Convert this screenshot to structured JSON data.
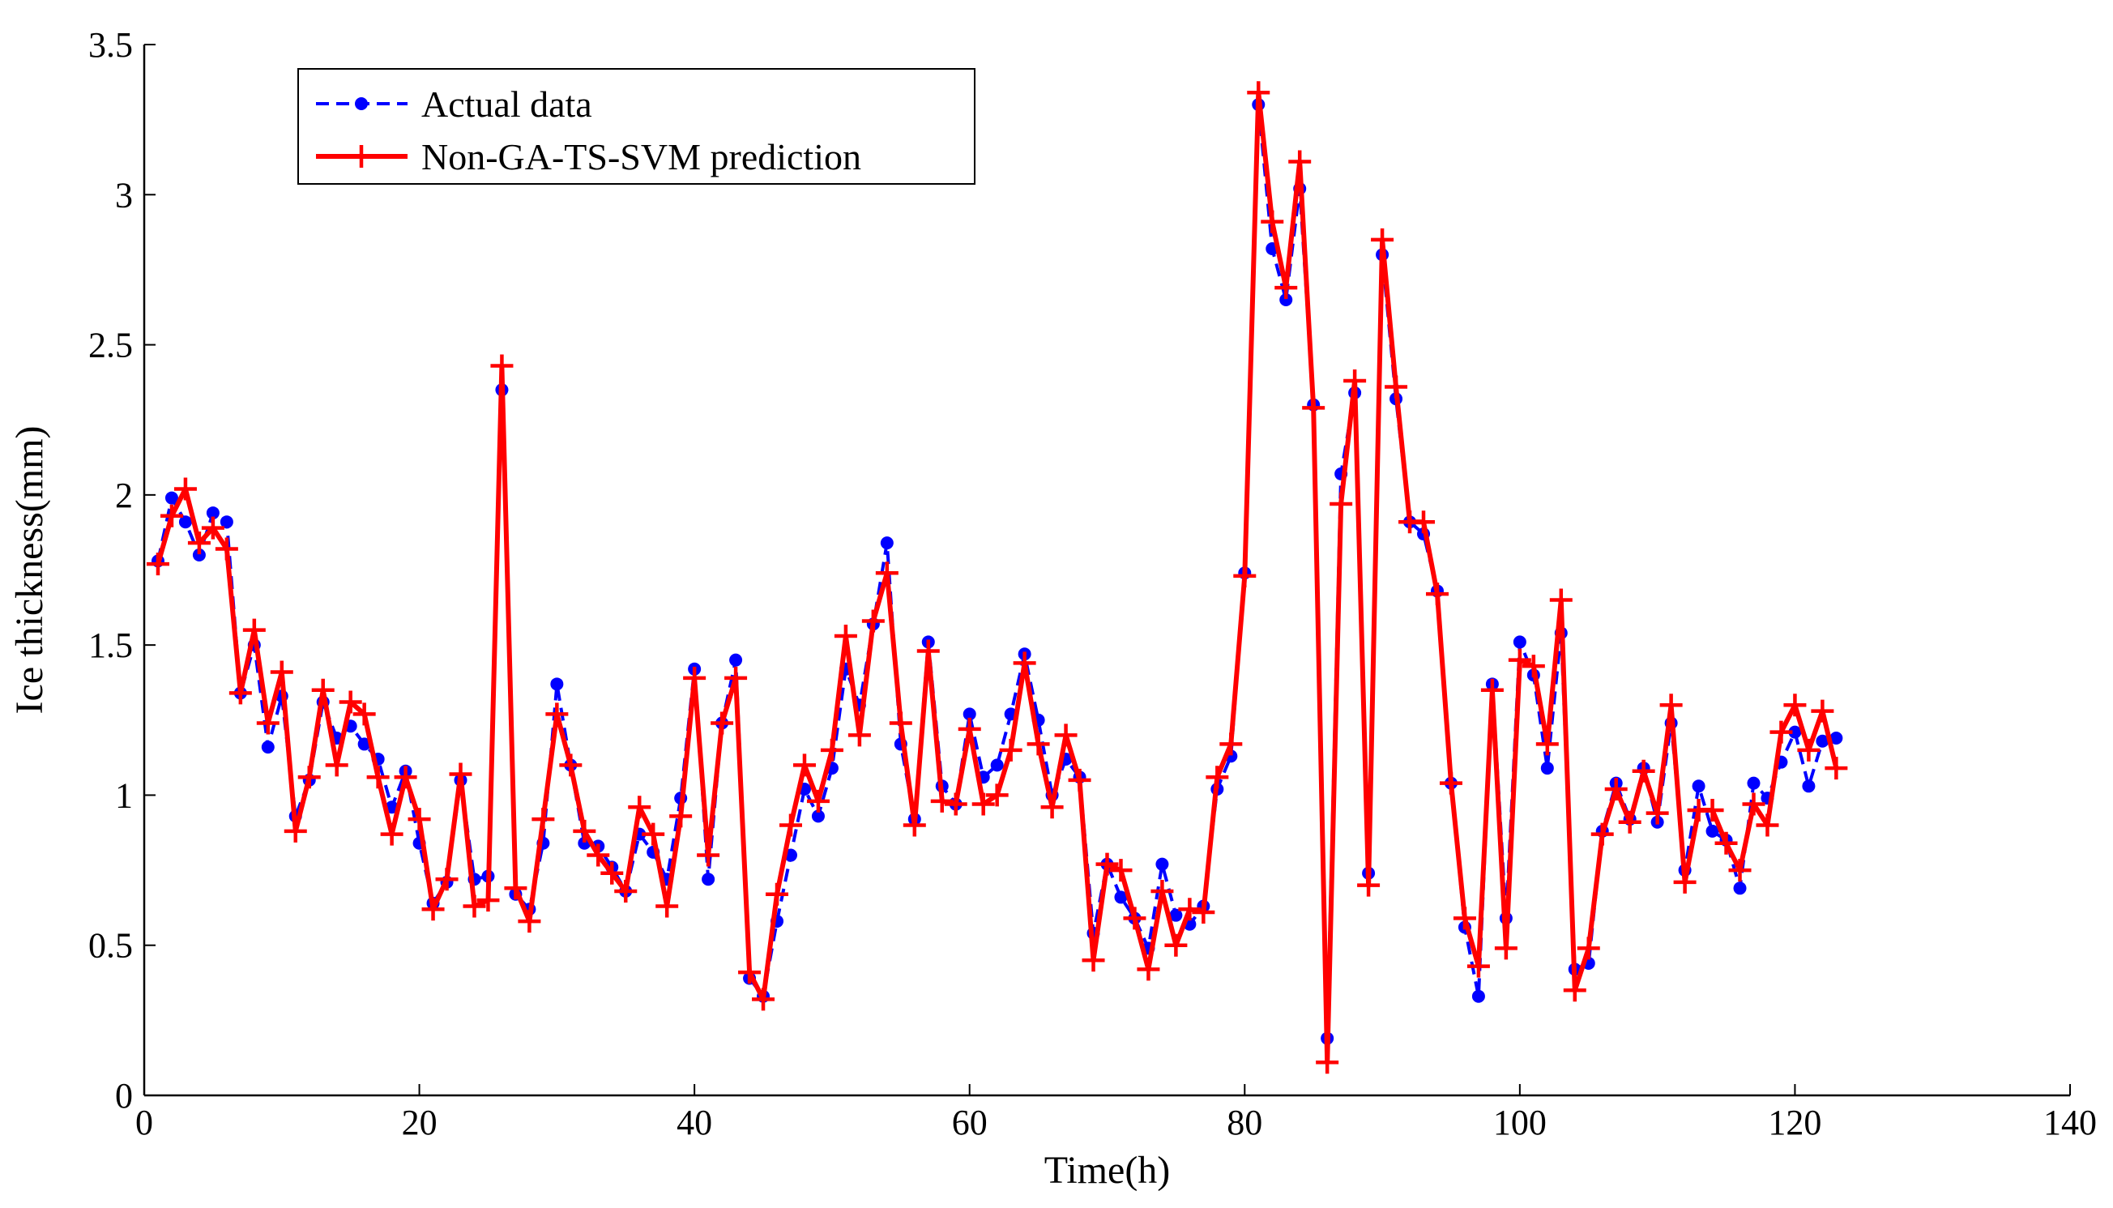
{
  "chart_data": {
    "type": "line",
    "title": "",
    "xlabel": "Time(h)",
    "ylabel": "Ice thickness(mm)",
    "xlim": [
      0,
      140
    ],
    "ylim": [
      0,
      3.5
    ],
    "xticks": [
      0,
      20,
      40,
      60,
      80,
      100,
      120,
      140
    ],
    "yticks": [
      0,
      0.5,
      1,
      1.5,
      2,
      2.5,
      3,
      3.5
    ],
    "grid": false,
    "legend_position": "top-left",
    "series": [
      {
        "name": "Actual data",
        "color": "#0000ff",
        "style": "dashed",
        "marker": "dot",
        "x": [
          1,
          2,
          3,
          4,
          5,
          6,
          7,
          8,
          9,
          10,
          11,
          12,
          13,
          14,
          15,
          16,
          17,
          18,
          19,
          20,
          21,
          22,
          23,
          24,
          25,
          26,
          27,
          28,
          29,
          30,
          31,
          32,
          33,
          34,
          35,
          36,
          37,
          38,
          39,
          40,
          41,
          42,
          43,
          44,
          45,
          46,
          47,
          48,
          49,
          50,
          51,
          52,
          53,
          54,
          55,
          56,
          57,
          58,
          59,
          60,
          61,
          62,
          63,
          64,
          65,
          66,
          67,
          68,
          69,
          70,
          71,
          72,
          73,
          74,
          75,
          76,
          77,
          78,
          79,
          80,
          81,
          82,
          83,
          84,
          85,
          86,
          87,
          88,
          89,
          90,
          91,
          92,
          93,
          94,
          95,
          96,
          97,
          98,
          99,
          100,
          101,
          102,
          103,
          104,
          105,
          106,
          107,
          108,
          109,
          110,
          111,
          112,
          113,
          114,
          115,
          116,
          117,
          118,
          119,
          120,
          121,
          122,
          123
        ],
        "y": [
          1.78,
          1.99,
          1.91,
          1.8,
          1.94,
          1.91,
          1.34,
          1.5,
          1.16,
          1.33,
          0.93,
          1.05,
          1.31,
          1.19,
          1.23,
          1.17,
          1.12,
          0.96,
          1.08,
          0.84,
          0.64,
          0.71,
          1.05,
          0.72,
          0.73,
          2.35,
          0.67,
          0.62,
          0.84,
          1.37,
          1.1,
          0.84,
          0.83,
          0.76,
          0.68,
          0.87,
          0.81,
          0.72,
          0.99,
          1.42,
          0.72,
          1.24,
          1.45,
          0.39,
          0.33,
          0.58,
          0.8,
          1.02,
          0.93,
          1.09,
          1.42,
          1.3,
          1.57,
          1.84,
          1.17,
          0.92,
          1.51,
          1.03,
          0.97,
          1.27,
          1.06,
          1.1,
          1.27,
          1.47,
          1.25,
          1.0,
          1.12,
          1.06,
          0.54,
          0.77,
          0.66,
          0.59,
          0.49,
          0.77,
          0.6,
          0.57,
          0.63,
          1.02,
          1.13,
          1.74,
          3.3,
          2.82,
          2.65,
          3.02,
          2.3,
          0.19,
          2.07,
          2.34,
          0.74,
          2.8,
          2.32,
          1.91,
          1.87,
          1.68,
          1.04,
          0.56,
          0.33,
          1.37,
          0.59,
          1.51,
          1.4,
          1.09,
          1.54,
          0.42,
          0.44,
          0.88,
          1.04,
          0.92,
          1.09,
          0.91,
          1.24,
          0.75,
          1.03,
          0.88,
          0.85,
          0.69,
          1.04,
          0.99,
          1.11,
          1.21,
          1.03,
          1.18,
          1.19
        ]
      },
      {
        "name": "Non-GA-TS-SVM prediction",
        "color": "#ff0000",
        "style": "solid",
        "marker": "plus",
        "x": [
          1,
          2,
          3,
          4,
          5,
          6,
          7,
          8,
          9,
          10,
          11,
          12,
          13,
          14,
          15,
          16,
          17,
          18,
          19,
          20,
          21,
          22,
          23,
          24,
          25,
          26,
          27,
          28,
          29,
          30,
          31,
          32,
          33,
          34,
          35,
          36,
          37,
          38,
          39,
          40,
          41,
          42,
          43,
          44,
          45,
          46,
          47,
          48,
          49,
          50,
          51,
          52,
          53,
          54,
          55,
          56,
          57,
          58,
          59,
          60,
          61,
          62,
          63,
          64,
          65,
          66,
          67,
          68,
          69,
          70,
          71,
          72,
          73,
          74,
          75,
          76,
          77,
          78,
          79,
          80,
          81,
          82,
          83,
          84,
          85,
          86,
          87,
          88,
          89,
          90,
          91,
          92,
          93,
          94,
          95,
          96,
          97,
          98,
          99,
          100,
          101,
          102,
          103,
          104,
          105,
          106,
          107,
          108,
          109,
          110,
          111,
          112,
          113,
          114,
          115,
          116,
          117,
          118,
          119,
          120,
          121,
          122,
          123
        ],
        "y": [
          1.77,
          1.93,
          2.02,
          1.84,
          1.89,
          1.82,
          1.34,
          1.55,
          1.24,
          1.41,
          0.88,
          1.06,
          1.35,
          1.1,
          1.31,
          1.27,
          1.06,
          0.87,
          1.06,
          0.92,
          0.62,
          0.72,
          1.07,
          0.63,
          0.65,
          2.43,
          0.69,
          0.58,
          0.92,
          1.27,
          1.1,
          0.88,
          0.8,
          0.74,
          0.68,
          0.96,
          0.87,
          0.63,
          0.93,
          1.39,
          0.8,
          1.24,
          1.39,
          0.41,
          0.32,
          0.67,
          0.9,
          1.1,
          0.98,
          1.15,
          1.53,
          1.2,
          1.58,
          1.74,
          1.24,
          0.9,
          1.48,
          0.98,
          0.97,
          1.22,
          0.97,
          1.0,
          1.15,
          1.44,
          1.17,
          0.96,
          1.2,
          1.05,
          0.45,
          0.77,
          0.75,
          0.59,
          0.42,
          0.68,
          0.5,
          0.62,
          0.61,
          1.06,
          1.17,
          1.73,
          3.34,
          2.91,
          2.69,
          3.11,
          2.29,
          0.11,
          1.97,
          2.38,
          0.7,
          2.85,
          2.36,
          1.91,
          1.91,
          1.67,
          1.04,
          0.59,
          0.43,
          1.35,
          0.49,
          1.45,
          1.43,
          1.17,
          1.65,
          0.35,
          0.49,
          0.87,
          1.02,
          0.91,
          1.08,
          0.94,
          1.3,
          0.71,
          0.95,
          0.95,
          0.84,
          0.75,
          0.97,
          0.9,
          1.21,
          1.3,
          1.15,
          1.28,
          1.09
        ]
      }
    ]
  }
}
